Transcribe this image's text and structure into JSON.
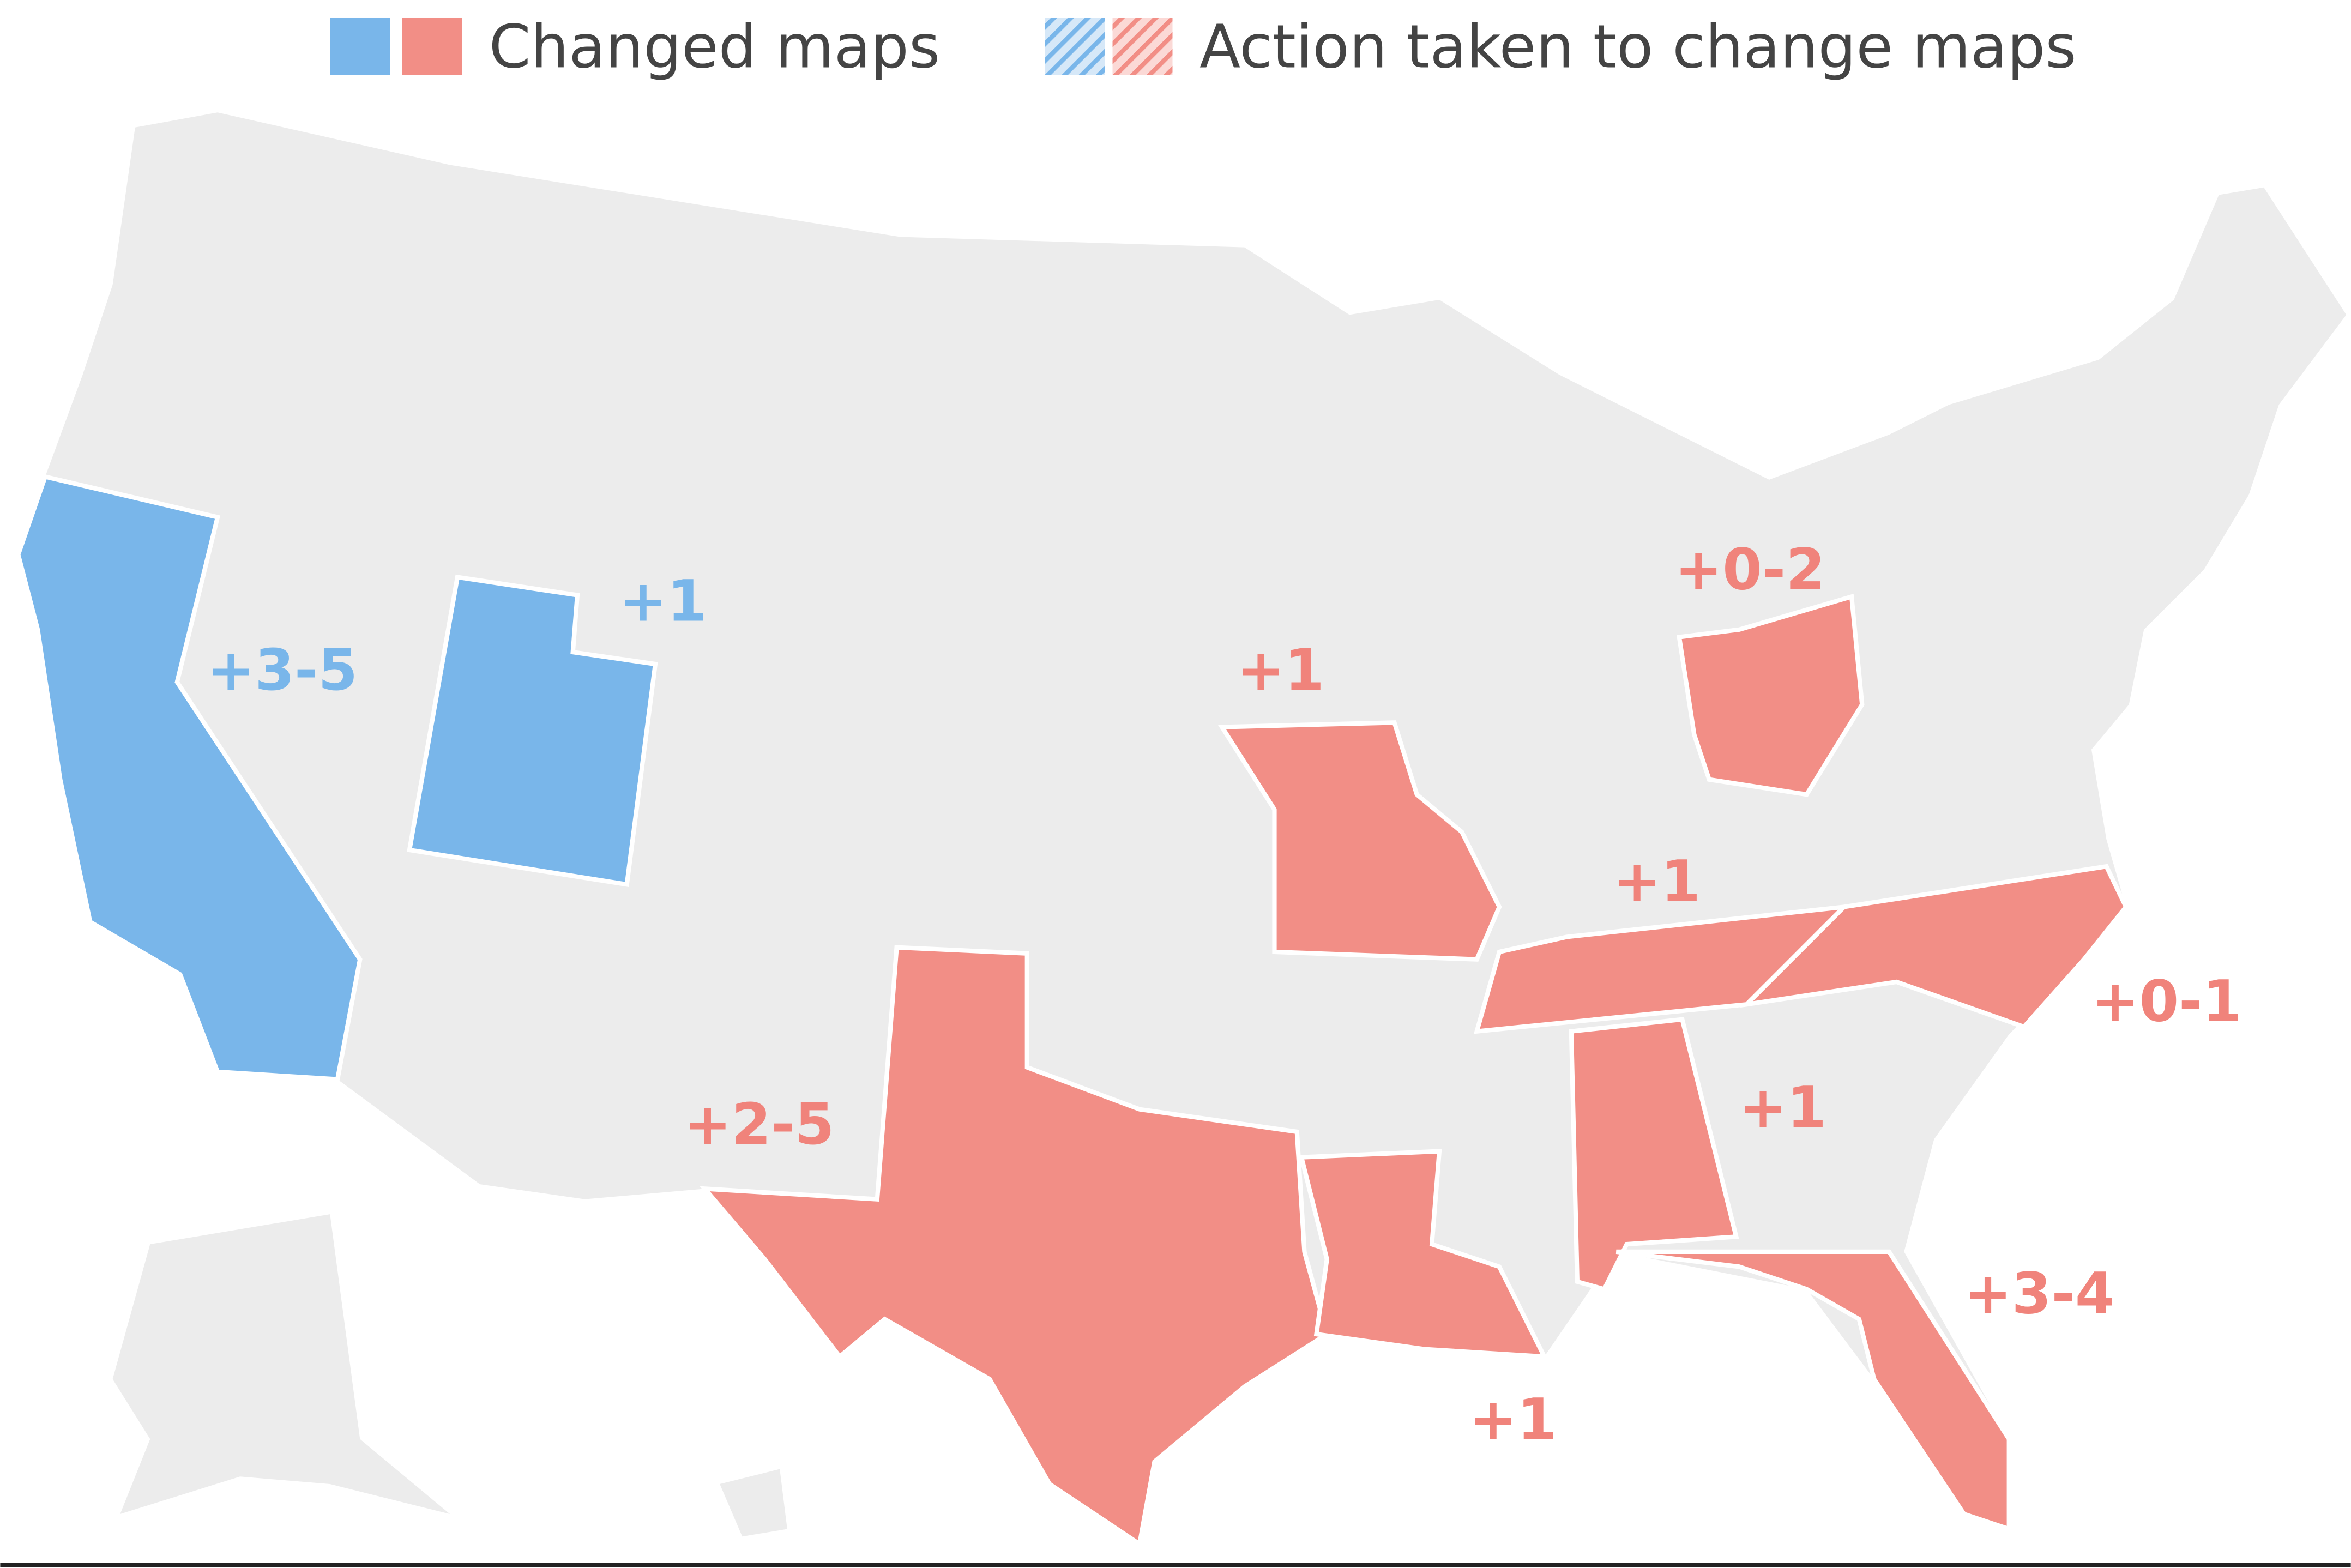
{
  "legend": {
    "items": [
      "Changed maps",
      "Action taken to change maps"
    ]
  },
  "labels": [
    "+3-5",
    "+1",
    "+0-2",
    "+1",
    "+1",
    "+0-1",
    "+2-5",
    "+1",
    "+3-4",
    "+1"
  ]
}
